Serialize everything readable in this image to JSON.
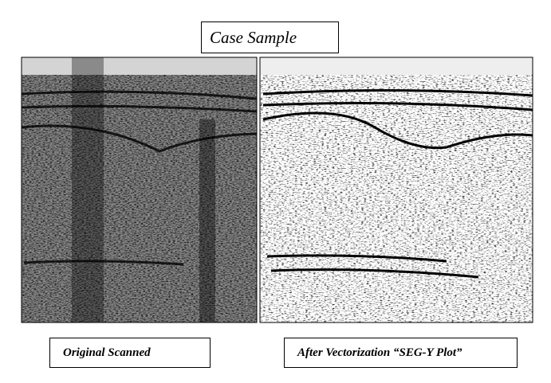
{
  "title": "Case Sample",
  "captions": {
    "left": "Original Scanned",
    "right": "After Vectorization “SEG-Y Plot”"
  }
}
